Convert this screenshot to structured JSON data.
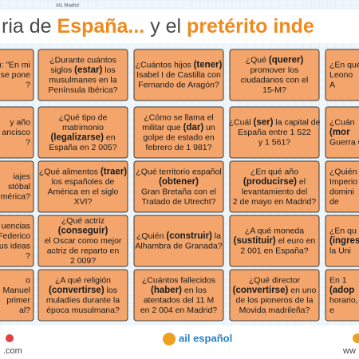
{
  "header": {
    "credit": "AIL Madrid",
    "title": [
      {
        "text": "ria de ",
        "accent": false
      },
      {
        "text": "España...",
        "accent": true
      },
      {
        "text": " y el ",
        "accent": false
      },
      {
        "text": "pretérito inde",
        "accent": true
      }
    ]
  },
  "board": {
    "columns": [
      {
        "cards": [
          [
            "): \"En mi",
            "se pone",
            "?"
          ],
          [
            "y año",
            "ancisco",
            "?"
          ],
          [
            "iajes",
            "stóbal",
            "mérica?"
          ],
          [
            "uencias",
            "Federico",
            "us ideas",
            "?"
          ],
          [
            "o",
            "Manuel",
            "primer",
            "al?"
          ]
        ]
      },
      {
        "cards": [
          [
            "¿Durante cuántos",
            "siglos (estar) los",
            "musulmanes en la",
            "Península Ibérica?"
          ],
          [
            "¿Qué tipo de",
            "matrimonio",
            "(legalizarse) en",
            "España en 2 005?"
          ],
          [
            "¿Qué alimentos (traer)",
            "los españoles de",
            "América en el siglo",
            "XVI?"
          ],
          [
            "¿Qué actriz",
            "(conseguir)",
            "el Oscar como mejor",
            "actriz de reparto en",
            "2 009?"
          ],
          [
            "¿A qué religión",
            "(convertirse) los",
            "muladíes durante la",
            "época musulmana?"
          ]
        ]
      },
      {
        "cards": [
          [
            "¿Cuántos hijos (tener)",
            "Isabel I de Castilla con",
            "Fernando de Aragón?"
          ],
          [
            "¿Cómo se llama el",
            "militar que (dar) un",
            "golpe de estado en",
            "febrero de 1 981?"
          ],
          [
            "¿Qué territorio español",
            "(obtener)",
            "Gran Bretaña con el",
            "Tratado de Utrecht?"
          ],
          [
            "¿Quién (construir) la",
            "Alhambra de Granada?"
          ],
          [
            "¿Cuántos fallecidos",
            "(haber) en los",
            "atentados del 11 M",
            "en 2 004 en Madrid?"
          ]
        ]
      },
      {
        "cards": [
          [
            "¿Qué (querer)",
            "promover los",
            "ciudadanos con el",
            "15-M?"
          ],
          [
            "¿Cuál (ser) la capital de",
            "España entre 1 522",
            "y 1 561?"
          ],
          [
            "¿En qué año",
            "(producirse) el",
            "levantamiento del",
            "2 de mayo en Madrid?"
          ],
          [
            "¿A qué moneda",
            "(sustituir) el euro en",
            "2 001 en España?"
          ],
          [
            "¿Qué director",
            "(convertirse) en uno",
            "de los pioneros de la",
            "Movida madrileña?"
          ]
        ]
      },
      {
        "cards": [
          [
            "¿En qué",
            "Leono",
            "A"
          ],
          [
            "¿Cuán",
            "(mor",
            "Guerra C"
          ],
          [
            "¿Quién",
            "Imperio",
            "domini",
            "de"
          ],
          [
            "¿En qu",
            "(ingres",
            "la Uni"
          ],
          [
            "En 1",
            "(adop",
            "horario,",
            "e"
          ]
        ]
      }
    ]
  },
  "footer": {
    "left": ".com",
    "logo": "ail español",
    "right": "ww"
  }
}
